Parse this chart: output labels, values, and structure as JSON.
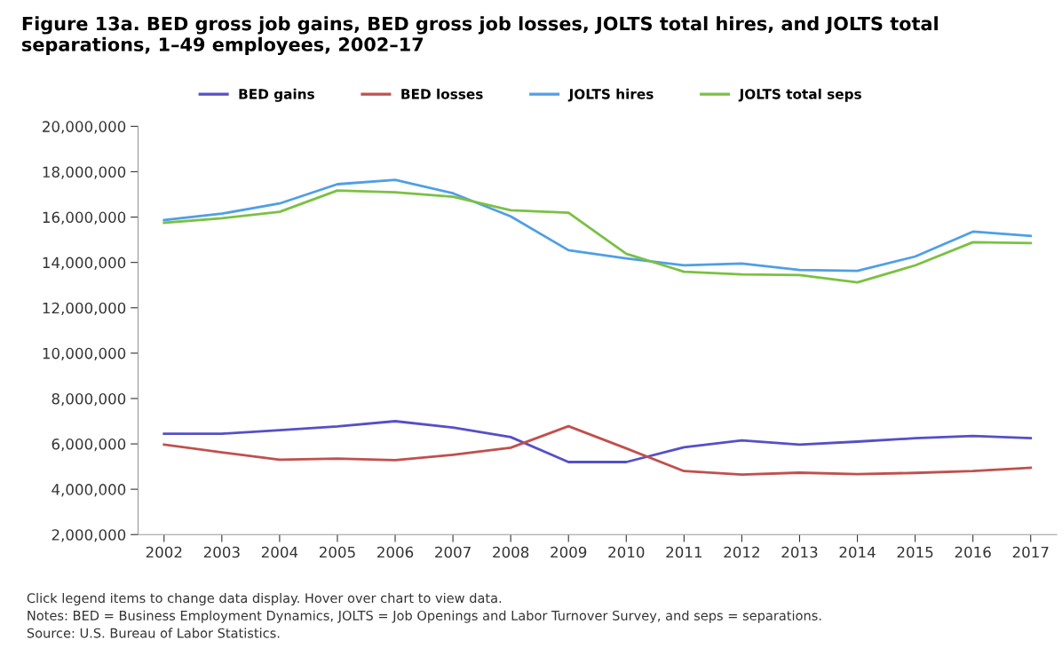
{
  "chart_data": {
    "type": "line",
    "title": "Figure 13a. BED gross job gains, BED gross job losses, JOLTS total hires, and JOLTS total separations, 1–49 employees, 2002–17",
    "categories": [
      "2002",
      "2003",
      "2004",
      "2005",
      "2006",
      "2007",
      "2008",
      "2009",
      "2010",
      "2011",
      "2012",
      "2013",
      "2014",
      "2015",
      "2016",
      "2017"
    ],
    "series": [
      {
        "name": "BED gains",
        "color": "#5550c8",
        "values": [
          6450000,
          6450000,
          6600000,
          6770000,
          7000000,
          6720000,
          6300000,
          5200000,
          5200000,
          5850000,
          6150000,
          5970000,
          6100000,
          6250000,
          6350000,
          6250000
        ]
      },
      {
        "name": "BED losses",
        "color": "#c0504d",
        "values": [
          5970000,
          5630000,
          5300000,
          5350000,
          5280000,
          5520000,
          5830000,
          6780000,
          5800000,
          4800000,
          4650000,
          4730000,
          4670000,
          4720000,
          4800000,
          4950000
        ]
      },
      {
        "name": "JOLTS hires",
        "color": "#4f9fe6",
        "values": [
          15870000,
          16150000,
          16600000,
          17450000,
          17640000,
          17050000,
          16030000,
          14540000,
          14180000,
          13870000,
          13950000,
          13670000,
          13630000,
          14260000,
          15360000,
          15170000
        ]
      },
      {
        "name": "JOLTS total seps",
        "color": "#7ac143",
        "values": [
          15750000,
          15950000,
          16230000,
          17170000,
          17090000,
          16900000,
          16300000,
          16190000,
          14380000,
          13590000,
          13470000,
          13440000,
          13120000,
          13870000,
          14890000,
          14850000
        ]
      }
    ],
    "ylim": [
      2000000,
      20000000
    ],
    "yticks": [
      {
        "value": 2000000,
        "label": "2,000,000"
      },
      {
        "value": 4000000,
        "label": "4,000,000"
      },
      {
        "value": 6000000,
        "label": "6,000,000"
      },
      {
        "value": 8000000,
        "label": "8,000,000"
      },
      {
        "value": 10000000,
        "label": "10,000,000"
      },
      {
        "value": 12000000,
        "label": "12,000,000"
      },
      {
        "value": 14000000,
        "label": "14,000,000"
      },
      {
        "value": 16000000,
        "label": "16,000,000"
      },
      {
        "value": 18000000,
        "label": "18,000,000"
      },
      {
        "value": 20000000,
        "label": "20,000,000"
      }
    ],
    "grid": false,
    "legend": "top",
    "marker": "none",
    "line_style": "solid",
    "annotations": [
      "Click legend items to change data display. Hover over chart to view data.",
      "Notes: BED = Business Employment Dynamics, JOLTS = Job Openings and Labor Turnover Survey, and seps = separations.",
      "Source: U.S. Bureau of Labor Statistics."
    ]
  }
}
